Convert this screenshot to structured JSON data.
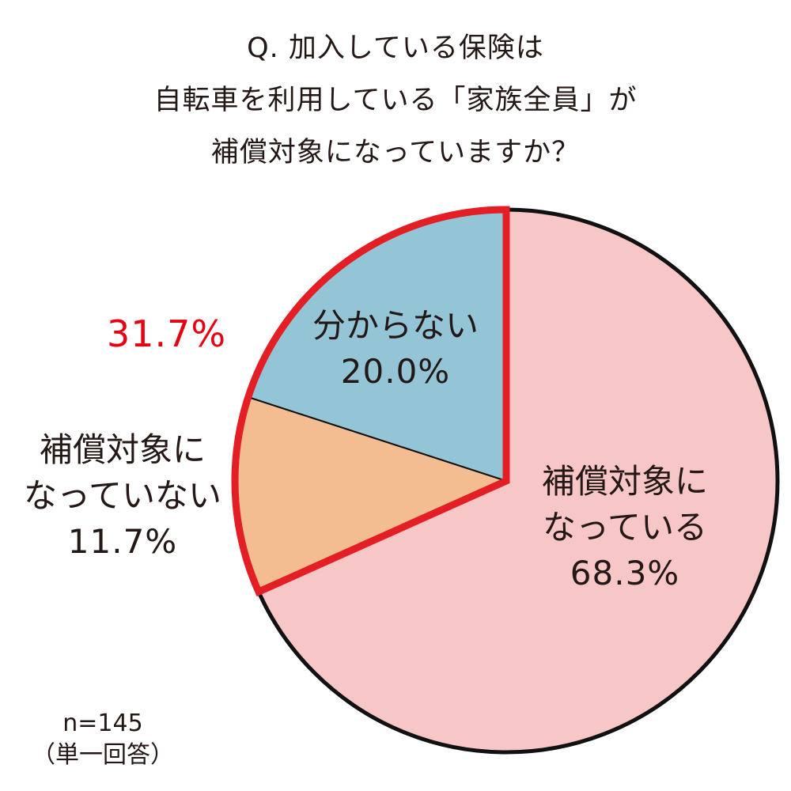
{
  "title_lines": [
    "Q. 加入している保険は",
    "自転車を利用している「家族全員」が",
    "補償対象になっていますか？"
  ],
  "highlight_label": "31.7%",
  "note": {
    "n": "n=145",
    "type": "（単一回答）"
  },
  "colors": {
    "covered": "#f7c6c7",
    "not_covered": "#f3bc91",
    "unknown": "#93c5d6",
    "outline": "#111111",
    "highlight": "#e31e24"
  },
  "chart_data": {
    "type": "pie",
    "start": "12 o'clock",
    "direction": "clockwise",
    "slices": [
      {
        "label_lines": [
          "補償対象に",
          "なっている"
        ],
        "value": 68.3,
        "value_label": "68.3%",
        "color": "#f7c6c7"
      },
      {
        "label_lines": [
          "補償対象に",
          "なっていない"
        ],
        "value": 11.7,
        "value_label": "11.7%",
        "color": "#f3bc91"
      },
      {
        "label_lines": [
          "分からない"
        ],
        "value": 20.0,
        "value_label": "20.0%",
        "color": "#93c5d6"
      }
    ],
    "highlighted_group": {
      "slices": [
        "補償対象になっていない",
        "分からない"
      ],
      "total_label": "31.7%",
      "outline_color": "#e31e24"
    }
  }
}
